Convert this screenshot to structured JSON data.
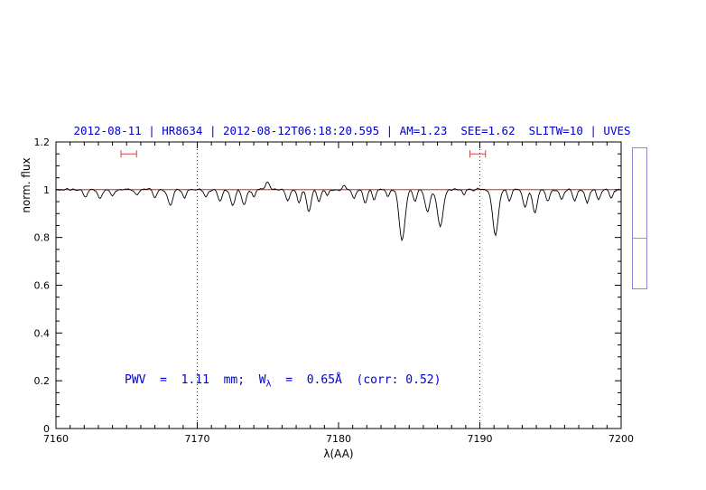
{
  "figure": {
    "title": "2012-08-11 | HR8634 | 2012-08-12T06:18:20.595 | AM=1.23  SEE=1.62  SLITW=10 | UVES",
    "annotation": {
      "part1": "PWV  =  1.11  mm;  W",
      "subscript": "λ",
      "part2": "  =  0.65Å  (corr: 0.52)"
    },
    "colors": {
      "title_text": "#0000cc",
      "annotation_text": "#0000cc",
      "spectrum": "#000000",
      "continuum": "#cc0000",
      "range_marker": "#cc4444",
      "side_panel_border": "#8888cc",
      "side_panel_marker": "#cc8888"
    },
    "side_panel": {
      "marker_fraction_from_top": 0.64
    }
  },
  "chart_data": {
    "type": "line",
    "title": "2012-08-11 | HR8634 | 2012-08-12T06:18:20.595 | AM=1.23  SEE=1.62  SLITW=10 | UVES",
    "xlabel": "λ(AA)",
    "ylabel": "norm. flux",
    "xlim": [
      7160,
      7200
    ],
    "ylim": [
      0,
      1.2
    ],
    "grid": false,
    "x_ticks": [
      7160,
      7170,
      7180,
      7190,
      7200
    ],
    "x_tick_labels": [
      "7160",
      "7170",
      "7180",
      "7190",
      "7200"
    ],
    "x_minor_step": 1,
    "y_ticks": [
      0,
      0.2,
      0.4,
      0.6,
      0.8,
      1,
      1.2
    ],
    "y_tick_labels": [
      "0",
      "0.2",
      "0.4",
      "0.6",
      "0.8",
      "1",
      "1.2"
    ],
    "y_minor_step": 0.05,
    "dotted_vlines": [
      7170,
      7190
    ],
    "continuum_line": {
      "y": 1.0,
      "color": "#cc0000"
    },
    "range_markers": [
      {
        "x1": 7164.6,
        "x2": 7165.7,
        "y": 1.15
      },
      {
        "x1": 7189.3,
        "x2": 7190.4,
        "y": 1.15
      }
    ],
    "annotation": "PWV = 1.11 mm; W_λ = 0.65Å (corr: 0.52)",
    "annotation_xy": [
      7165,
      0.2
    ],
    "series": [
      {
        "name": "spectrum",
        "continuum": 1.0,
        "noise_amplitude": 0.008,
        "sample_step": 0.08,
        "absorption_lines_format": "[center_A, depth, sigma_A]",
        "absorption_lines": [
          [
            7162.1,
            0.03,
            0.14
          ],
          [
            7163.1,
            0.035,
            0.14
          ],
          [
            7164.0,
            0.03,
            0.13
          ],
          [
            7165.7,
            0.025,
            0.12
          ],
          [
            7167.0,
            0.03,
            0.13
          ],
          [
            7168.1,
            0.06,
            0.18
          ],
          [
            7169.1,
            0.03,
            0.12
          ],
          [
            7170.6,
            0.03,
            0.12
          ],
          [
            7171.6,
            0.05,
            0.15
          ],
          [
            7172.5,
            0.065,
            0.16
          ],
          [
            7173.3,
            0.06,
            0.16
          ],
          [
            7174.0,
            0.03,
            0.1
          ],
          [
            7175.0,
            -0.03,
            0.15
          ],
          [
            7176.4,
            0.05,
            0.14
          ],
          [
            7177.2,
            0.055,
            0.14
          ],
          [
            7177.9,
            0.09,
            0.16
          ],
          [
            7178.6,
            0.05,
            0.13
          ],
          [
            7179.2,
            0.03,
            0.11
          ],
          [
            7180.4,
            -0.02,
            0.12
          ],
          [
            7181.1,
            0.04,
            0.13
          ],
          [
            7181.9,
            0.055,
            0.14
          ],
          [
            7182.5,
            0.04,
            0.12
          ],
          [
            7183.5,
            0.03,
            0.12
          ],
          [
            7184.5,
            0.215,
            0.2
          ],
          [
            7185.4,
            0.05,
            0.13
          ],
          [
            7186.3,
            0.095,
            0.17
          ],
          [
            7187.2,
            0.15,
            0.2
          ],
          [
            7188.9,
            0.025,
            0.1
          ],
          [
            7191.1,
            0.19,
            0.2
          ],
          [
            7192.1,
            0.045,
            0.13
          ],
          [
            7193.2,
            0.07,
            0.15
          ],
          [
            7193.9,
            0.1,
            0.16
          ],
          [
            7194.8,
            0.05,
            0.13
          ],
          [
            7195.8,
            0.035,
            0.12
          ],
          [
            7196.7,
            0.05,
            0.14
          ],
          [
            7197.6,
            0.055,
            0.14
          ],
          [
            7198.4,
            0.045,
            0.13
          ],
          [
            7199.3,
            0.035,
            0.12
          ]
        ]
      }
    ]
  }
}
